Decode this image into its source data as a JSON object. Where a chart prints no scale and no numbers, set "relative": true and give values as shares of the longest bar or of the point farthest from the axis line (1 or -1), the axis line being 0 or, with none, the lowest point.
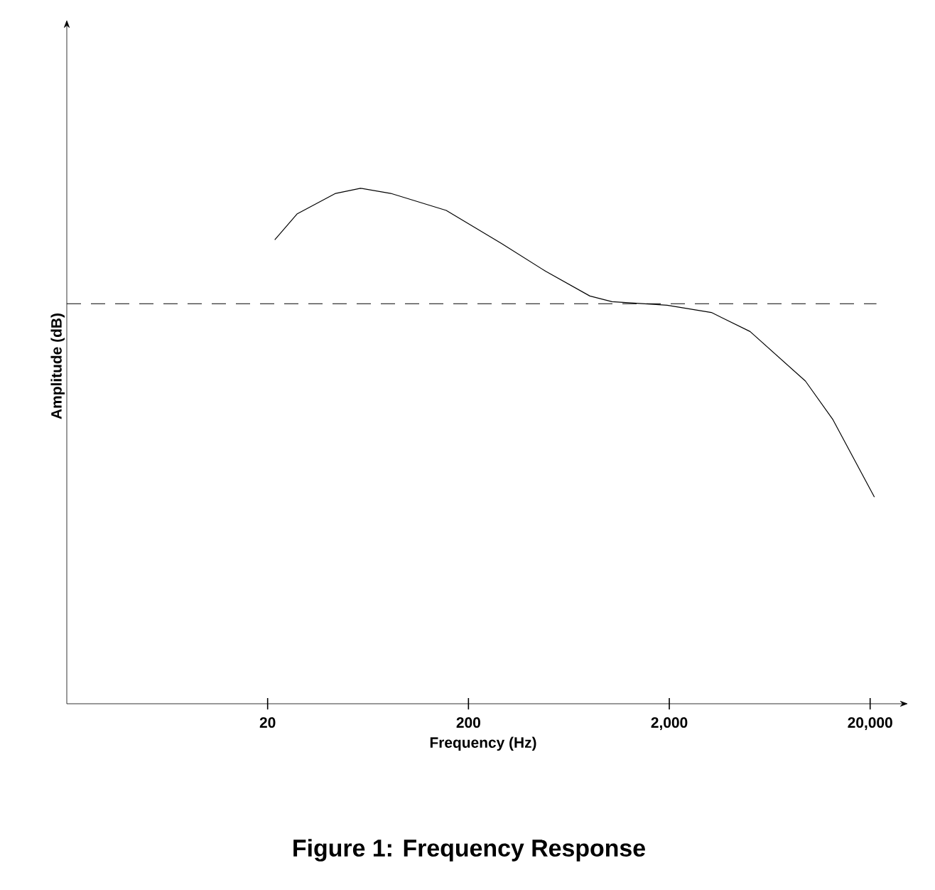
{
  "chart_data": {
    "type": "line",
    "title": "Figure 1: Frequency Response",
    "xlabel": "Frequency (Hz)",
    "ylabel": "Amplitude (dB)",
    "relative": true,
    "log": "x",
    "tick_labels": "x",
    "xlim": [
      2,
      28000
    ],
    "xticks": [
      20,
      200,
      {
        "value": 2000,
        "label": "2,000"
      },
      {
        "value": 20000,
        "label": "20,000"
      }
    ],
    "x": [
      21.7,
      28,
      43.6,
      58,
      82,
      155,
      292,
      484,
      804,
      1036,
      1950,
      3240,
      5050,
      9520,
      13060,
      21000
    ],
    "series": [
      {
        "color": "#000000",
        "values": [
          0.9,
          0.95,
          0.99,
          1.0,
          0.99,
          0.957,
          0.893,
          0.839,
          0.791,
          0.78,
          0.773,
          0.759,
          0.722,
          0.626,
          0.551,
          0.401
        ]
      }
    ],
    "ref_lines": [
      {
        "axis": "y",
        "value": 0.776,
        "color": "#000000",
        "line_style": "dashed"
      }
    ]
  }
}
